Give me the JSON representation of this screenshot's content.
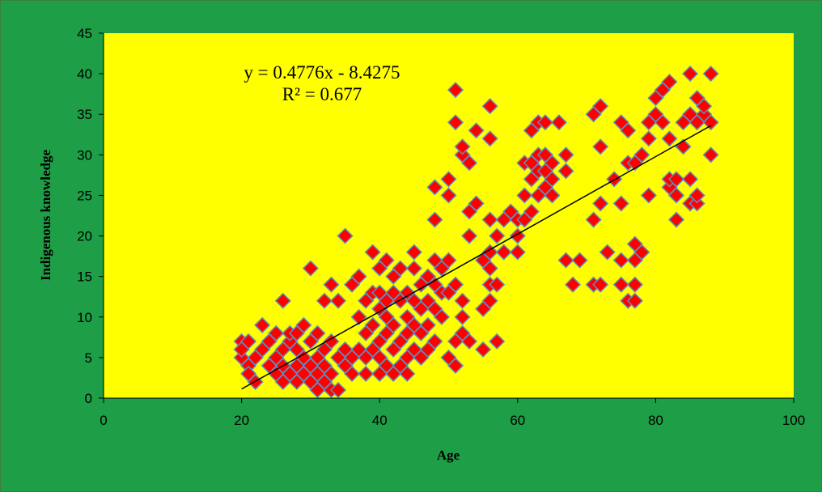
{
  "colors": {
    "frame_background": "#1E9E46",
    "frame_border": "#3C7E3C",
    "plot_background": "#FFFF00",
    "marker_fill": "#FF0000",
    "marker_stroke": "#5B8FBE",
    "trendline": "#000000"
  },
  "chart_data": {
    "type": "scatter",
    "xlabel": "Age",
    "ylabel": "Indigenous knowledge",
    "xlim": [
      0,
      100
    ],
    "ylim": [
      0,
      45
    ],
    "xticks": [
      0,
      20,
      40,
      60,
      80,
      100
    ],
    "yticks": [
      0,
      5,
      10,
      15,
      20,
      25,
      30,
      35,
      40,
      45
    ],
    "grid": false,
    "legend": "none",
    "marker": "diamond",
    "trendline": {
      "type": "linear",
      "slope": 0.4776,
      "intercept": -8.4275,
      "x_range": [
        20,
        88
      ],
      "equation_label": "y = 0.4776x - 8.4275",
      "r2_label": "R² = 0.677"
    },
    "points": [
      [
        20,
        7
      ],
      [
        20,
        5
      ],
      [
        20,
        6
      ],
      [
        21,
        4
      ],
      [
        21,
        3
      ],
      [
        21,
        7
      ],
      [
        22,
        2
      ],
      [
        22,
        5
      ],
      [
        23,
        6
      ],
      [
        23,
        9
      ],
      [
        24,
        4
      ],
      [
        24,
        7
      ],
      [
        25,
        3
      ],
      [
        25,
        5
      ],
      [
        25,
        8
      ],
      [
        26,
        2
      ],
      [
        26,
        4
      ],
      [
        26,
        6
      ],
      [
        26,
        12
      ],
      [
        27,
        3
      ],
      [
        27,
        7
      ],
      [
        27,
        8
      ],
      [
        28,
        2
      ],
      [
        28,
        4
      ],
      [
        28,
        6
      ],
      [
        28,
        8
      ],
      [
        29,
        3
      ],
      [
        29,
        5
      ],
      [
        29,
        9
      ],
      [
        30,
        2
      ],
      [
        30,
        4
      ],
      [
        30,
        7
      ],
      [
        30,
        16
      ],
      [
        31,
        1
      ],
      [
        31,
        3
      ],
      [
        31,
        5
      ],
      [
        31,
        8
      ],
      [
        32,
        2
      ],
      [
        32,
        4
      ],
      [
        32,
        6
      ],
      [
        32,
        12
      ],
      [
        33,
        1
      ],
      [
        33,
        3
      ],
      [
        33,
        7
      ],
      [
        33,
        14
      ],
      [
        34,
        1
      ],
      [
        34,
        5
      ],
      [
        34,
        12
      ],
      [
        35,
        4
      ],
      [
        35,
        6
      ],
      [
        35,
        20
      ],
      [
        36,
        3
      ],
      [
        36,
        5
      ],
      [
        36,
        14
      ],
      [
        37,
        6
      ],
      [
        37,
        10
      ],
      [
        37,
        15
      ],
      [
        38,
        3
      ],
      [
        38,
        5
      ],
      [
        38,
        8
      ],
      [
        38,
        12
      ],
      [
        39,
        6
      ],
      [
        39,
        9
      ],
      [
        39,
        13
      ],
      [
        39,
        18
      ],
      [
        40,
        3
      ],
      [
        40,
        5
      ],
      [
        40,
        7
      ],
      [
        40,
        11
      ],
      [
        40,
        13
      ],
      [
        40,
        16
      ],
      [
        41,
        4
      ],
      [
        41,
        8
      ],
      [
        41,
        10
      ],
      [
        41,
        12
      ],
      [
        41,
        17
      ],
      [
        42,
        3
      ],
      [
        42,
        6
      ],
      [
        42,
        9
      ],
      [
        42,
        13
      ],
      [
        42,
        15
      ],
      [
        43,
        4
      ],
      [
        43,
        7
      ],
      [
        43,
        12
      ],
      [
        43,
        16
      ],
      [
        44,
        3
      ],
      [
        44,
        5
      ],
      [
        44,
        8
      ],
      [
        44,
        10
      ],
      [
        44,
        13
      ],
      [
        45,
        6
      ],
      [
        45,
        9
      ],
      [
        45,
        12
      ],
      [
        45,
        16
      ],
      [
        45,
        18
      ],
      [
        46,
        5
      ],
      [
        46,
        8
      ],
      [
        46,
        11
      ],
      [
        46,
        14
      ],
      [
        47,
        6
      ],
      [
        47,
        9
      ],
      [
        47,
        12
      ],
      [
        47,
        15
      ],
      [
        48,
        7
      ],
      [
        48,
        11
      ],
      [
        48,
        14
      ],
      [
        48,
        17
      ],
      [
        48,
        22
      ],
      [
        48,
        26
      ],
      [
        49,
        10
      ],
      [
        49,
        13
      ],
      [
        49,
        16
      ],
      [
        50,
        5
      ],
      [
        50,
        13
      ],
      [
        50,
        17
      ],
      [
        50,
        25
      ],
      [
        50,
        27
      ],
      [
        51,
        4
      ],
      [
        51,
        7
      ],
      [
        51,
        14
      ],
      [
        51,
        34
      ],
      [
        51,
        38
      ],
      [
        52,
        8
      ],
      [
        52,
        10
      ],
      [
        52,
        12
      ],
      [
        52,
        30
      ],
      [
        52,
        31
      ],
      [
        53,
        7
      ],
      [
        53,
        20
      ],
      [
        53,
        23
      ],
      [
        53,
        29
      ],
      [
        54,
        24
      ],
      [
        54,
        33
      ],
      [
        55,
        6
      ],
      [
        55,
        11
      ],
      [
        55,
        17
      ],
      [
        56,
        12
      ],
      [
        56,
        14
      ],
      [
        56,
        16
      ],
      [
        56,
        18
      ],
      [
        56,
        22
      ],
      [
        56,
        32
      ],
      [
        56,
        36
      ],
      [
        57,
        7
      ],
      [
        57,
        14
      ],
      [
        57,
        20
      ],
      [
        58,
        18
      ],
      [
        58,
        22
      ],
      [
        59,
        23
      ],
      [
        60,
        18
      ],
      [
        60,
        20
      ],
      [
        60,
        22
      ],
      [
        61,
        22
      ],
      [
        61,
        25
      ],
      [
        61,
        29
      ],
      [
        62,
        23
      ],
      [
        62,
        27
      ],
      [
        62,
        29
      ],
      [
        62,
        33
      ],
      [
        63,
        25
      ],
      [
        63,
        28
      ],
      [
        63,
        30
      ],
      [
        63,
        34
      ],
      [
        64,
        26
      ],
      [
        64,
        28
      ],
      [
        64,
        30
      ],
      [
        64,
        34
      ],
      [
        65,
        25
      ],
      [
        65,
        27
      ],
      [
        65,
        29
      ],
      [
        66,
        34
      ],
      [
        67,
        17
      ],
      [
        67,
        28
      ],
      [
        67,
        30
      ],
      [
        68,
        14
      ],
      [
        69,
        17
      ],
      [
        71,
        14
      ],
      [
        71,
        22
      ],
      [
        71,
        35
      ],
      [
        72,
        14
      ],
      [
        72,
        24
      ],
      [
        72,
        31
      ],
      [
        72,
        36
      ],
      [
        73,
        18
      ],
      [
        74,
        27
      ],
      [
        75,
        14
      ],
      [
        75,
        17
      ],
      [
        75,
        24
      ],
      [
        75,
        34
      ],
      [
        76,
        12
      ],
      [
        76,
        29
      ],
      [
        76,
        33
      ],
      [
        77,
        12
      ],
      [
        77,
        14
      ],
      [
        77,
        17
      ],
      [
        77,
        19
      ],
      [
        77,
        29
      ],
      [
        78,
        18
      ],
      [
        78,
        30
      ],
      [
        79,
        25
      ],
      [
        79,
        32
      ],
      [
        79,
        34
      ],
      [
        80,
        35
      ],
      [
        80,
        37
      ],
      [
        81,
        34
      ],
      [
        81,
        38
      ],
      [
        82,
        26
      ],
      [
        82,
        27
      ],
      [
        82,
        32
      ],
      [
        82,
        39
      ],
      [
        83,
        22
      ],
      [
        83,
        25
      ],
      [
        83,
        27
      ],
      [
        84,
        31
      ],
      [
        84,
        34
      ],
      [
        85,
        24
      ],
      [
        85,
        27
      ],
      [
        85,
        35
      ],
      [
        85,
        40
      ],
      [
        86,
        24
      ],
      [
        86,
        25
      ],
      [
        86,
        34
      ],
      [
        86,
        37
      ],
      [
        87,
        35
      ],
      [
        87,
        36
      ],
      [
        88,
        30
      ],
      [
        88,
        34
      ],
      [
        88,
        40
      ]
    ]
  }
}
